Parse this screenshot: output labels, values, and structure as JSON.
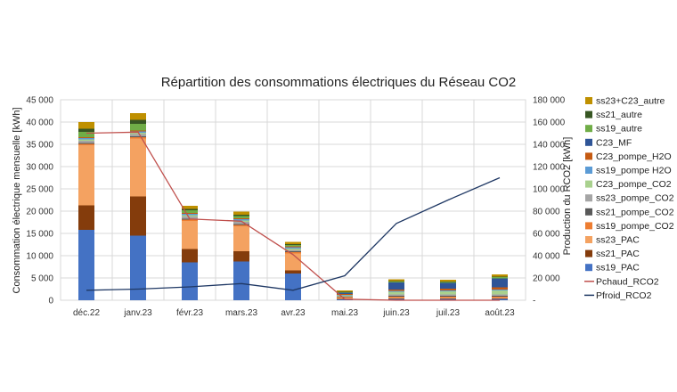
{
  "chart_data": {
    "type": "bar",
    "title": "Répartition des consommations électriques du Réseau CO2",
    "ylabel": "Consommation électrique mensuelle [kWh]",
    "y2label": "Production du RCO2 [kWh]",
    "ylim": [
      0,
      45000
    ],
    "y2lim": [
      0,
      180000
    ],
    "yticks": [
      "0",
      "5 000",
      "10 000",
      "15 000",
      "20 000",
      "25 000",
      "30 000",
      "35 000",
      "40 000",
      "45 000"
    ],
    "y2ticks": [
      "-",
      "20 000",
      "40 000",
      "60 000",
      "80 000",
      "100 000",
      "120 000",
      "140 000",
      "160 000",
      "180 000"
    ],
    "categories": [
      "déc.22",
      "janv.23",
      "févr.23",
      "mars.23",
      "avr.23",
      "mai.23",
      "juin.23",
      "juil.23",
      "août.23"
    ],
    "grid": true,
    "legend_position": "right",
    "series": [
      {
        "name": "ss19_PAC",
        "color": "#4472c4",
        "values": [
          15800,
          14500,
          8500,
          8700,
          6000,
          200,
          300,
          300,
          300
        ]
      },
      {
        "name": "ss21_PAC",
        "color": "#843c0c",
        "values": [
          5500,
          8800,
          3000,
          2300,
          700,
          100,
          100,
          100,
          100
        ]
      },
      {
        "name": "ss23_PAC",
        "color": "#f4a261",
        "values": [
          13500,
          13000,
          6300,
          5600,
          3800,
          300,
          200,
          200,
          200
        ]
      },
      {
        "name": "ss19_pompe_CO2",
        "color": "#ed7d31",
        "values": [
          300,
          300,
          300,
          300,
          300,
          100,
          200,
          200,
          200
        ]
      },
      {
        "name": "ss21_pompe_CO2",
        "color": "#595959",
        "values": [
          200,
          200,
          200,
          200,
          200,
          100,
          200,
          200,
          200
        ]
      },
      {
        "name": "ss23_pompe_CO2",
        "color": "#a5a5a5",
        "values": [
          500,
          500,
          500,
          500,
          300,
          100,
          300,
          300,
          300
        ]
      },
      {
        "name": "C23_pompe_CO2",
        "color": "#a9d18e",
        "values": [
          300,
          300,
          300,
          300,
          300,
          200,
          600,
          700,
          900
        ]
      },
      {
        "name": "ss19_pompe H2O",
        "color": "#5b9bd5",
        "values": [
          300,
          300,
          300,
          300,
          300,
          100,
          200,
          200,
          200
        ]
      },
      {
        "name": "C23_pompe_H2O",
        "color": "#c55a11",
        "values": [
          200,
          200,
          200,
          200,
          200,
          200,
          300,
          400,
          500
        ]
      },
      {
        "name": "C23_MF",
        "color": "#2f5597",
        "values": [
          0,
          0,
          0,
          0,
          0,
          300,
          1600,
          1300,
          2000
        ]
      },
      {
        "name": "ss19_autre",
        "color": "#70ad47",
        "values": [
          1200,
          1500,
          600,
          500,
          300,
          100,
          200,
          200,
          300
        ]
      },
      {
        "name": "ss21_autre",
        "color": "#375623",
        "values": [
          700,
          900,
          300,
          300,
          200,
          100,
          100,
          100,
          100
        ]
      },
      {
        "name": "ss23+C23_autre",
        "color": "#bf9000",
        "values": [
          1500,
          1500,
          700,
          700,
          500,
          300,
          400,
          400,
          500
        ]
      }
    ],
    "line_series": [
      {
        "name": "Pchaud_RCO2",
        "color": "#c0504d",
        "axis": "right",
        "values": [
          150000,
          151000,
          73000,
          71000,
          41000,
          1000,
          0,
          0,
          0
        ]
      },
      {
        "name": "Pfroid_RCO2",
        "color": "#1f3864",
        "axis": "right",
        "values": [
          9000,
          10000,
          12000,
          15000,
          9000,
          22000,
          69000,
          90000,
          110000
        ]
      }
    ]
  }
}
